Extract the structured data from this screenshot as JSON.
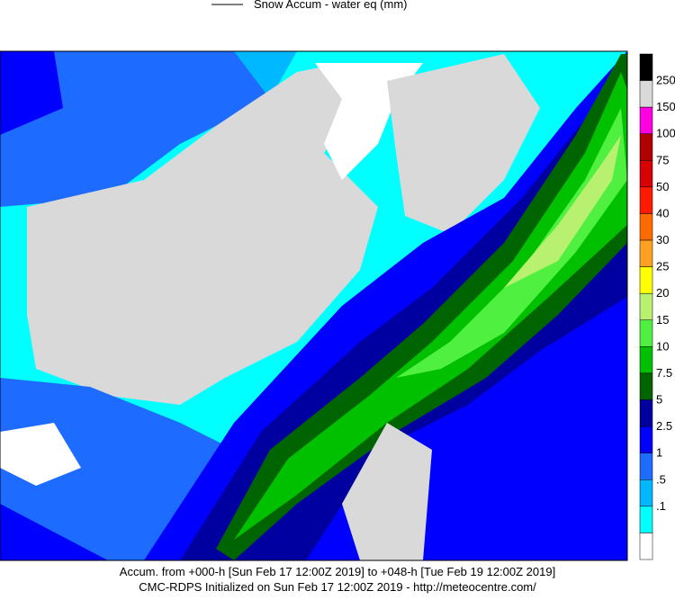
{
  "header": {
    "title": "Snow Accum - water eq (mm)"
  },
  "colorbar": [
    {
      "color": "#000000",
      "label": null
    },
    {
      "color": "#d9d9d9",
      "label": "250"
    },
    {
      "color": "#ff00e0",
      "label": "150"
    },
    {
      "color": "#b00000",
      "label": "100"
    },
    {
      "color": "#d80000",
      "label": "75"
    },
    {
      "color": "#ff1a00",
      "label": "50"
    },
    {
      "color": "#ff6a00",
      "label": "40"
    },
    {
      "color": "#ffa020",
      "label": "30"
    },
    {
      "color": "#ffff00",
      "label": "25"
    },
    {
      "color": "#b8f070",
      "label": "20"
    },
    {
      "color": "#50f040",
      "label": "15"
    },
    {
      "color": "#00c000",
      "label": "10"
    },
    {
      "color": "#006400",
      "label": "7.5"
    },
    {
      "color": "#0000a0",
      "label": "5"
    },
    {
      "color": "#0000ff",
      "label": "2.5"
    },
    {
      "color": "#1e6cff",
      "label": "1"
    },
    {
      "color": "#00b8ff",
      "label": ".5"
    },
    {
      "color": "#00ffff",
      "label": ".1"
    },
    {
      "color": "#ffffff",
      "label": null
    }
  ],
  "footer": {
    "line1": "Accum. from +000-h [Sun Feb 17 12:00Z 2019] to +048-h [Tue Feb 19 12:00Z 2019]",
    "line2": "CMC-RDPS Initialized on Sun Feb 17 12:00Z 2019 - http://meteocentre.com/"
  }
}
